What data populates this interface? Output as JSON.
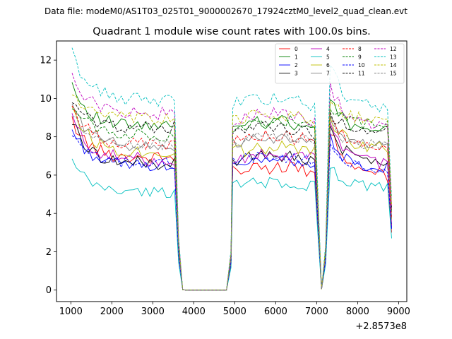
{
  "chart_data": {
    "type": "line",
    "suptitle": "Data file: modeM0/AS1T03_025T01_9000002670_17924cztM0_level2_quad_clean.evt",
    "title": "Quadrant 1 module wise count rates with 100.0s bins.",
    "xlabel": "",
    "ylabel": "",
    "x_offset_label": "+2.8573e8",
    "xlim": [
      650,
      9200
    ],
    "ylim": [
      -0.6,
      13.0
    ],
    "xticks": [
      1000,
      2000,
      3000,
      4000,
      5000,
      6000,
      7000,
      8000,
      9000
    ],
    "xtick_labels": [
      "1000",
      "2000",
      "3000",
      "4000",
      "5000",
      "6000",
      "7000",
      "8000",
      "9000"
    ],
    "yticks": [
      0,
      2,
      4,
      6,
      8,
      10,
      12
    ],
    "ytick_labels": [
      "0",
      "2",
      "4",
      "6",
      "8",
      "10",
      "12"
    ],
    "legend_position": "top-right",
    "gti_segments": [
      {
        "start": 1030,
        "end": 3530,
        "n": 26,
        "base_scale": 1.0
      },
      {
        "start": 4950,
        "end": 6950,
        "n": 21,
        "base_scale": 1.0
      },
      {
        "start": 7330,
        "end": 8730,
        "n": 15,
        "base_scale": 1.0
      }
    ],
    "series": [
      {
        "name": "0",
        "color": "#ff0000",
        "dashed": false,
        "start": 8.9,
        "level": 6.9,
        "seg2": 6.7,
        "seg3": 6.0,
        "noise": 0.35
      },
      {
        "name": "1",
        "color": "#008000",
        "dashed": false,
        "start": 10.8,
        "level": 8.5,
        "seg2": 9.2,
        "seg3": 8.2,
        "noise": 0.35
      },
      {
        "name": "2",
        "color": "#0000ff",
        "dashed": false,
        "start": 8.4,
        "level": 6.5,
        "seg2": 7.1,
        "seg3": 6.4,
        "noise": 0.3
      },
      {
        "name": "3",
        "color": "#000000",
        "dashed": false,
        "start": 8.8,
        "level": 6.6,
        "seg2": 7.3,
        "seg3": 6.8,
        "noise": 0.35
      },
      {
        "name": "4",
        "color": "#bf00bf",
        "dashed": false,
        "start": 9.0,
        "level": 6.8,
        "seg2": 7.4,
        "seg3": 6.6,
        "noise": 0.35
      },
      {
        "name": "5",
        "color": "#00bfbf",
        "dashed": false,
        "start": 6.7,
        "level": 5.1,
        "seg2": 5.9,
        "seg3": 5.4,
        "noise": 0.3
      },
      {
        "name": "6",
        "color": "#bfbf00",
        "dashed": false,
        "start": 9.6,
        "level": 7.2,
        "seg2": 7.8,
        "seg3": 7.4,
        "noise": 0.35
      },
      {
        "name": "7",
        "color": "#808080",
        "dashed": false,
        "start": 9.7,
        "level": 7.5,
        "seg2": 8.3,
        "seg3": 7.5,
        "noise": 0.3
      },
      {
        "name": "8",
        "color": "#ff0000",
        "dashed": true,
        "start": 9.6,
        "level": 7.6,
        "seg2": 8.4,
        "seg3": 7.6,
        "noise": 0.35
      },
      {
        "name": "9",
        "color": "#008000",
        "dashed": true,
        "start": 9.8,
        "level": 8.1,
        "seg2": 9.3,
        "seg3": 8.7,
        "noise": 0.35
      },
      {
        "name": "10",
        "color": "#0000ff",
        "dashed": true,
        "start": 8.0,
        "level": 6.6,
        "seg2": 7.3,
        "seg3": 6.4,
        "noise": 0.3
      },
      {
        "name": "11",
        "color": "#000000",
        "dashed": true,
        "start": 9.7,
        "level": 8.5,
        "seg2": 8.9,
        "seg3": 8.4,
        "noise": 0.35
      },
      {
        "name": "12",
        "color": "#bf00bf",
        "dashed": true,
        "start": 11.4,
        "level": 9.2,
        "seg2": 9.6,
        "seg3": 8.6,
        "noise": 0.35
      },
      {
        "name": "13",
        "color": "#00bfbf",
        "dashed": true,
        "start": 12.4,
        "level": 9.9,
        "seg2": 10.5,
        "seg3": 9.6,
        "noise": 0.35
      },
      {
        "name": "14",
        "color": "#bfbf00",
        "dashed": true,
        "start": 10.3,
        "level": 8.9,
        "seg2": 9.6,
        "seg3": 8.9,
        "noise": 0.35
      },
      {
        "name": "15",
        "color": "#808080",
        "dashed": true,
        "start": 9.1,
        "level": 7.6,
        "seg2": 8.4,
        "seg3": 7.6,
        "noise": 0.3
      }
    ]
  }
}
